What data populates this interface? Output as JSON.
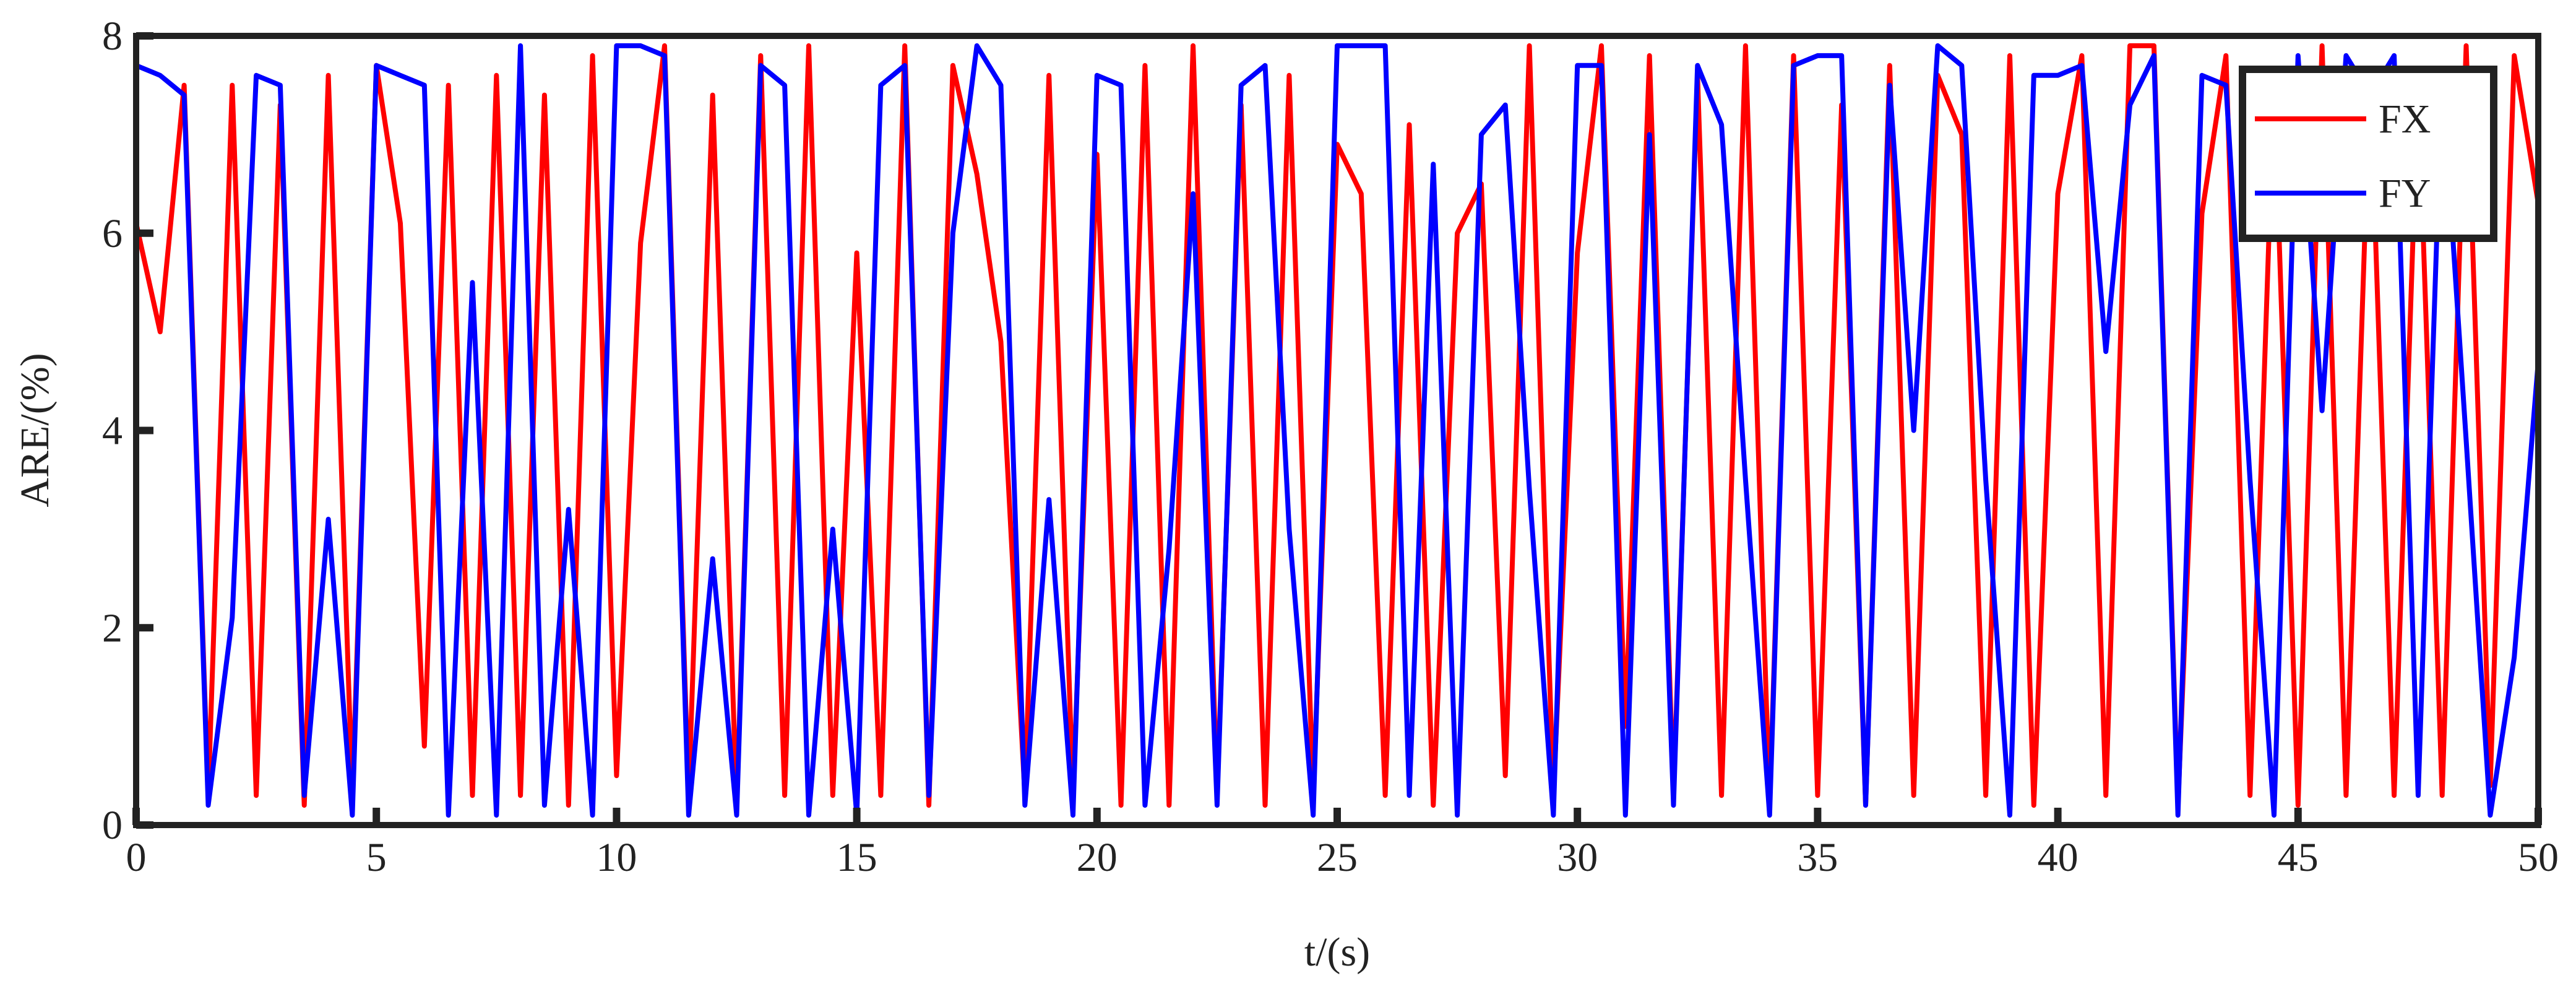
{
  "chart_data": {
    "type": "line",
    "xlabel": "t/(s)",
    "ylabel": "ARE/(%)",
    "xlim": [
      0,
      50
    ],
    "ylim": [
      0,
      8
    ],
    "xticks": [
      0,
      5,
      10,
      15,
      20,
      25,
      30,
      35,
      40,
      45,
      50
    ],
    "yticks": [
      0,
      2,
      4,
      6,
      8
    ],
    "legend": "northeast",
    "x": [
      0,
      0.5,
      1,
      1.5,
      2,
      2.5,
      3,
      3.5,
      4,
      4.5,
      5,
      5.5,
      6,
      6.5,
      7,
      7.5,
      8,
      8.5,
      9,
      9.5,
      10,
      10.5,
      11,
      11.5,
      12,
      12.5,
      13,
      13.5,
      14,
      14.5,
      15,
      15.5,
      16,
      16.5,
      17,
      17.5,
      18,
      18.5,
      19,
      19.5,
      20,
      20.5,
      21,
      21.5,
      22,
      22.5,
      23,
      23.5,
      24,
      24.5,
      25,
      25.5,
      26,
      26.5,
      27,
      27.5,
      28,
      28.5,
      29,
      29.5,
      30,
      30.5,
      31,
      31.5,
      32,
      32.5,
      33,
      33.5,
      34,
      34.5,
      35,
      35.5,
      36,
      36.5,
      37,
      37.5,
      38,
      38.5,
      39,
      39.5,
      40,
      40.5,
      41,
      41.5,
      42,
      42.5,
      43,
      43.5,
      44,
      44.5,
      45,
      45.5,
      46,
      46.5,
      47,
      47.5,
      48,
      48.5,
      49,
      49.5,
      50
    ],
    "series": [
      {
        "name": "FX",
        "color": "#ff0000",
        "values": [
          6.1,
          5.0,
          7.5,
          0.3,
          7.5,
          0.3,
          7.3,
          0.2,
          7.6,
          0.3,
          7.7,
          6.1,
          0.8,
          7.5,
          0.3,
          7.6,
          0.3,
          7.4,
          0.2,
          7.8,
          0.5,
          5.9,
          7.9,
          0.3,
          7.4,
          0.2,
          7.8,
          0.3,
          7.9,
          0.3,
          5.8,
          0.3,
          7.9,
          0.2,
          7.7,
          6.6,
          4.9,
          0.3,
          7.6,
          0.3,
          6.8,
          0.2,
          7.7,
          0.2,
          7.9,
          0.3,
          7.3,
          0.2,
          7.6,
          0.3,
          6.9,
          6.4,
          0.3,
          7.1,
          0.2,
          6.0,
          6.5,
          0.5,
          7.9,
          0.3,
          5.8,
          7.9,
          1.0,
          7.8,
          0.3,
          7.6,
          0.3,
          7.9,
          0.2,
          7.8,
          0.3,
          7.3,
          0.2,
          7.7,
          0.3,
          7.6,
          7.0,
          0.3,
          7.8,
          0.2,
          6.4,
          7.8,
          0.3,
          7.9,
          7.9,
          0.2,
          6.2,
          7.8,
          0.3,
          7.5,
          0.2,
          7.9,
          0.3,
          7.6,
          0.3,
          7.5,
          0.3,
          7.9,
          0.4,
          7.8,
          6.3
        ]
      },
      {
        "name": "FY",
        "color": "#0000ff",
        "values": [
          7.7,
          7.6,
          7.4,
          0.2,
          2.1,
          7.6,
          7.5,
          0.3,
          3.1,
          0.1,
          7.7,
          7.6,
          7.5,
          0.1,
          5.5,
          0.1,
          7.9,
          0.2,
          3.2,
          0.1,
          7.9,
          7.9,
          7.8,
          0.1,
          2.7,
          0.1,
          7.7,
          7.5,
          0.1,
          3.0,
          0.1,
          7.5,
          7.7,
          0.3,
          6.0,
          7.9,
          7.5,
          0.2,
          3.3,
          0.1,
          7.6,
          7.5,
          0.2,
          2.8,
          6.4,
          0.2,
          7.5,
          7.7,
          3.0,
          0.1,
          7.9,
          7.9,
          7.9,
          0.3,
          6.7,
          0.1,
          7.0,
          7.3,
          3.4,
          0.1,
          7.7,
          7.7,
          0.1,
          7.0,
          0.2,
          7.7,
          7.1,
          3.5,
          0.1,
          7.7,
          7.8,
          7.8,
          0.2,
          7.5,
          4.0,
          7.9,
          7.7,
          3.5,
          0.1,
          7.6,
          7.6,
          7.7,
          4.8,
          7.3,
          7.8,
          0.1,
          7.6,
          7.5,
          3.5,
          0.1,
          7.8,
          4.2,
          7.8,
          7.4,
          7.8,
          0.3,
          7.6,
          3.9,
          0.1,
          1.7,
          4.7
        ]
      }
    ]
  }
}
